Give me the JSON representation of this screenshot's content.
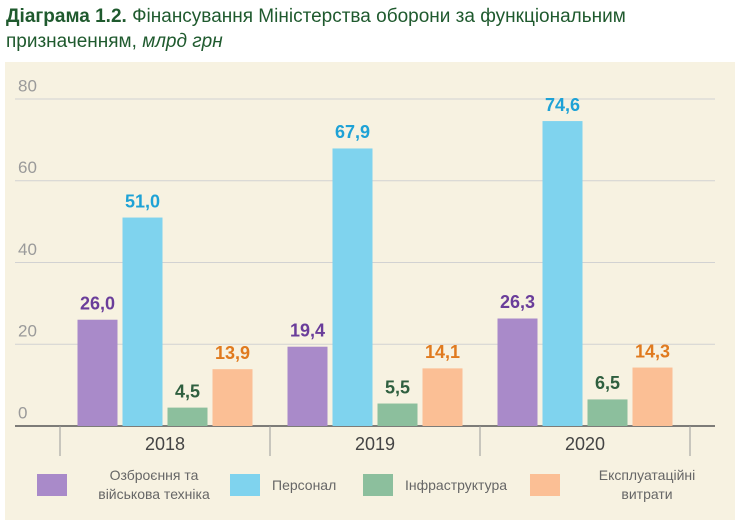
{
  "chart_data": {
    "type": "bar",
    "title_label": "Діаграма 1.2.",
    "title": "Фінансування Міністерства оборони за функціональним призначенням,",
    "unit": "млрд грн",
    "categories": [
      "2018",
      "2019",
      "2020"
    ],
    "series": [
      {
        "name": "Озброєння та військова техніка",
        "color": "#a98ac9",
        "label_color": "#6a3d9a",
        "values": [
          26.0,
          19.4,
          26.3
        ],
        "value_labels": [
          "26,0",
          "19,4",
          "26,3"
        ]
      },
      {
        "name": "Персонал",
        "color": "#7fd3ee",
        "label_color": "#1ea2d6",
        "values": [
          51.0,
          67.9,
          74.6
        ],
        "value_labels": [
          "51,0",
          "67,9",
          "74,6"
        ]
      },
      {
        "name": "Інфраструктура",
        "color": "#8cbf9d",
        "label_color": "#2f5f3f",
        "values": [
          4.5,
          5.5,
          6.5
        ],
        "value_labels": [
          "4,5",
          "5,5",
          "6,5"
        ]
      },
      {
        "name": "Експлуатаційні витрати",
        "color": "#fbbf95",
        "label_color": "#e07a1e",
        "values": [
          13.9,
          14.1,
          14.3
        ],
        "value_labels": [
          "13,9",
          "14,1",
          "14,3"
        ]
      }
    ],
    "ylim": [
      0,
      80
    ],
    "yticks": [
      0,
      20,
      40,
      60,
      80
    ],
    "grid": true
  }
}
